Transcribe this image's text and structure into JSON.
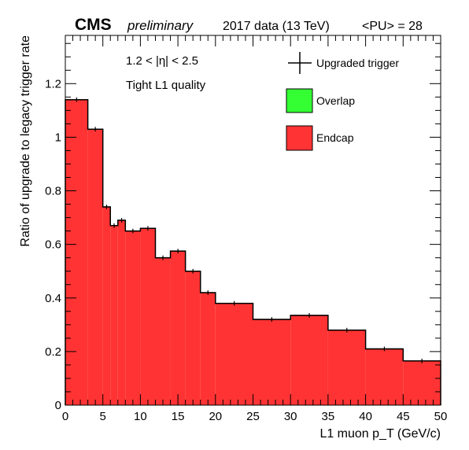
{
  "header": {
    "experiment": "CMS",
    "status": "preliminary",
    "dataset": "2017 data (13 TeV)",
    "pileup": "<PU> = 28"
  },
  "annotations": {
    "eta_range": "1.2 < |η| < 2.5",
    "quality": "Tight L1 quality"
  },
  "colors": {
    "endcap_fill": "#ff3333",
    "overlap_fill": "#33ff33",
    "line": "#000000"
  },
  "chart_data": {
    "type": "bar",
    "subtype": "stacked histogram with data points",
    "xlabel": "L1 muon p_T (GeV/c)",
    "ylabel": "Ratio of upgrade to legacy trigger rate",
    "xlim": [
      0,
      50
    ],
    "ylim": [
      0,
      1.38
    ],
    "x_ticks": [
      "0",
      "5",
      "10",
      "15",
      "20",
      "25",
      "30",
      "35",
      "40",
      "45",
      "50"
    ],
    "y_ticks": [
      "0",
      "0.2",
      "0.4",
      "0.6",
      "0.8",
      "1",
      "1.2"
    ],
    "grid": false,
    "legend_position": "top-right",
    "bin_edges": [
      0,
      3,
      5,
      6,
      7,
      8,
      10,
      12,
      14,
      16,
      18,
      20,
      25,
      30,
      35,
      40,
      45,
      50
    ],
    "series": [
      {
        "name": "Overlap",
        "kind": "filled-histogram",
        "color": "#33ff33",
        "values": [
          0,
          0,
          0,
          0,
          0,
          0,
          0,
          0,
          0,
          0,
          0,
          0,
          0,
          0,
          0,
          0,
          0
        ]
      },
      {
        "name": "Endcap",
        "kind": "filled-histogram",
        "color": "#ff3333",
        "values": [
          1.14,
          1.03,
          0.74,
          0.67,
          0.69,
          0.65,
          0.66,
          0.55,
          0.575,
          0.5,
          0.42,
          0.38,
          0.32,
          0.335,
          0.28,
          0.21,
          0.165
        ]
      },
      {
        "name": "Upgraded trigger",
        "kind": "points",
        "color": "#000000",
        "values": [
          1.14,
          1.03,
          0.74,
          0.67,
          0.69,
          0.65,
          0.66,
          0.55,
          0.575,
          0.5,
          0.42,
          0.38,
          0.32,
          0.335,
          0.28,
          0.21,
          0.165
        ],
        "errors": [
          0.004,
          0.004,
          0.004,
          0.004,
          0.004,
          0.004,
          0.004,
          0.004,
          0.004,
          0.004,
          0.004,
          0.004,
          0.004,
          0.004,
          0.004,
          0.004,
          0.004
        ]
      }
    ]
  }
}
